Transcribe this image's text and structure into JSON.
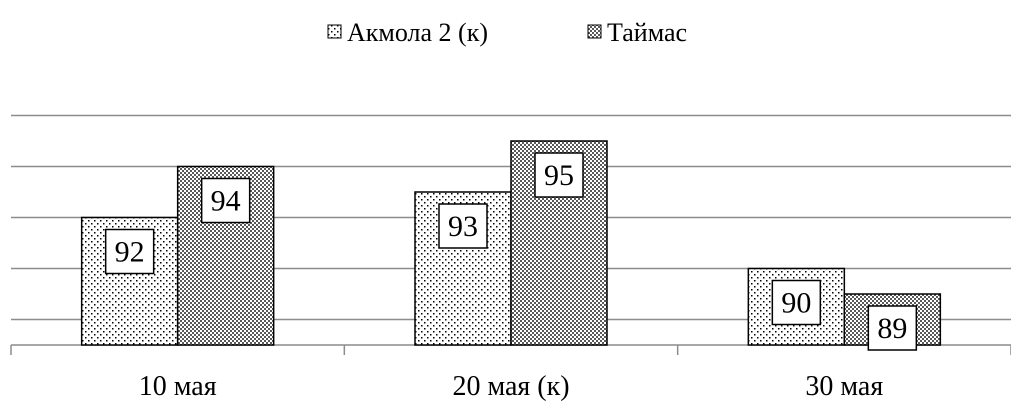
{
  "chart_data": {
    "type": "bar",
    "title": "",
    "xlabel": "",
    "ylabel": "",
    "categories": [
      "10 мая",
      "20 мая (к)",
      "30 мая"
    ],
    "series": [
      {
        "name": "Акмола 2 (к)",
        "values": [
          92,
          93,
          90
        ],
        "pattern": "dots",
        "fill": "#ffffff",
        "pattern_color": "#000000"
      },
      {
        "name": "Таймас",
        "values": [
          94,
          95,
          89
        ],
        "pattern": "checker",
        "fill": "#ffffff",
        "pattern_color": "#000000"
      }
    ],
    "ylim": [
      87,
      98
    ],
    "y_gridlines": [
      88,
      90,
      92,
      94,
      96
    ],
    "grid": true,
    "y_axis_labels_shown": false,
    "data_labels": true,
    "legend": "top-center",
    "colors": {
      "grid": "#8c8c8c",
      "bar_outline": "#000000",
      "axis": "#8c8c8c"
    }
  }
}
